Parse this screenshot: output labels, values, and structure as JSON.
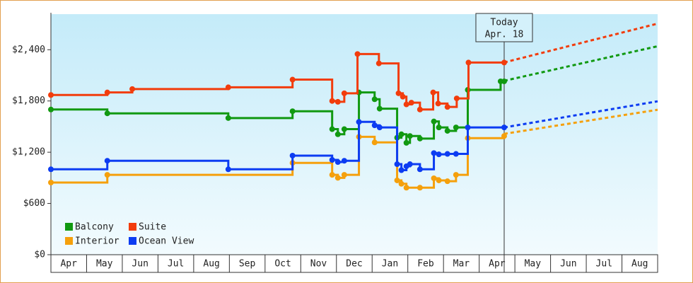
{
  "chart_data": {
    "type": "step",
    "xlim": [
      0,
      17
    ],
    "xticks": [
      {
        "value": 0.5,
        "label": "Apr"
      },
      {
        "value": 1.5,
        "label": "May"
      },
      {
        "value": 2.5,
        "label": "Jun"
      },
      {
        "value": 3.5,
        "label": "Jul"
      },
      {
        "value": 4.5,
        "label": "Aug"
      },
      {
        "value": 5.5,
        "label": "Sep"
      },
      {
        "value": 6.5,
        "label": "Oct"
      },
      {
        "value": 7.5,
        "label": "Nov"
      },
      {
        "value": 8.5,
        "label": "Dec"
      },
      {
        "value": 9.5,
        "label": "Jan"
      },
      {
        "value": 10.5,
        "label": "Feb"
      },
      {
        "value": 11.5,
        "label": "Mar"
      },
      {
        "value": 12.5,
        "label": "Apr"
      },
      {
        "value": 13.5,
        "label": "May"
      },
      {
        "value": 14.5,
        "label": "Jun"
      },
      {
        "value": 15.5,
        "label": "Jul"
      },
      {
        "value": 16.5,
        "label": "Aug"
      }
    ],
    "ylim": [
      0,
      2800
    ],
    "yticks": [
      {
        "value": 0,
        "label": "$0"
      },
      {
        "value": 600,
        "label": "$600"
      },
      {
        "value": 1200,
        "label": "$1,200"
      },
      {
        "value": 1800,
        "label": "$1,800"
      },
      {
        "value": 2400,
        "label": "$2,400"
      }
    ],
    "today": {
      "x": 12.7,
      "label": "Today",
      "date": "Apr. 18"
    },
    "legend": "lower left",
    "series": [
      {
        "name": "Balcony",
        "color": "#119911",
        "x": [
          0,
          1.58,
          4.97,
          6.77,
          7.88,
          8.04,
          8.22,
          8.63,
          9.07,
          9.21,
          9.7,
          9.82,
          9.96,
          10.06,
          10.34,
          10.73,
          10.87,
          11.11,
          11.35,
          11.68,
          12.6,
          12.7
        ],
        "values": [
          1700,
          1655,
          1600,
          1680,
          1470,
          1410,
          1470,
          1900,
          1820,
          1710,
          1370,
          1410,
          1310,
          1390,
          1360,
          1560,
          1490,
          1450,
          1490,
          1930,
          2030,
          2030
        ],
        "forecast_x": [
          12.7,
          17
        ],
        "forecast_values": [
          2036,
          2441
        ]
      },
      {
        "name": "Suite",
        "color": "#f23c0c",
        "x": [
          0,
          1.58,
          2.28,
          4.97,
          6.77,
          7.88,
          8.04,
          8.22,
          8.59,
          9.19,
          9.74,
          9.86,
          9.96,
          10.1,
          10.34,
          10.71,
          10.85,
          11.11,
          11.37,
          11.7,
          12.7
        ],
        "values": [
          1870,
          1900,
          1940,
          1960,
          2050,
          1800,
          1790,
          1890,
          2350,
          2240,
          1890,
          1850,
          1760,
          1780,
          1700,
          1900,
          1770,
          1730,
          1830,
          2250,
          2250
        ],
        "forecast_x": [
          12.7,
          17
        ],
        "forecast_values": [
          2251,
          2706
        ]
      },
      {
        "name": "Interior",
        "color": "#f5a00c",
        "x": [
          0,
          1.58,
          6.77,
          7.88,
          8.04,
          8.22,
          8.63,
          9.07,
          9.7,
          9.82,
          9.96,
          10.34,
          10.73,
          10.87,
          11.11,
          11.35,
          11.68,
          12.7
        ],
        "values": [
          845,
          935,
          1075,
          935,
          900,
          935,
          1380,
          1315,
          870,
          830,
          785,
          785,
          895,
          870,
          860,
          935,
          1365,
          1390
        ],
        "forecast_x": [
          12.7,
          17
        ],
        "forecast_values": [
          1415,
          1697
        ]
      },
      {
        "name": "Ocean View",
        "color": "#0c3cf2",
        "x": [
          0,
          1.58,
          4.97,
          6.77,
          7.88,
          8.04,
          8.22,
          8.63,
          9.07,
          9.21,
          9.7,
          9.82,
          9.96,
          10.06,
          10.34,
          10.73,
          10.87,
          11.11,
          11.35,
          11.68,
          12.7
        ],
        "values": [
          1000,
          1100,
          1000,
          1160,
          1110,
          1085,
          1100,
          1555,
          1515,
          1490,
          1060,
          990,
          1035,
          1060,
          1000,
          1190,
          1175,
          1180,
          1180,
          1490,
          1490
        ],
        "forecast_x": [
          12.7,
          17
        ],
        "forecast_values": [
          1490,
          1796
        ]
      }
    ]
  }
}
